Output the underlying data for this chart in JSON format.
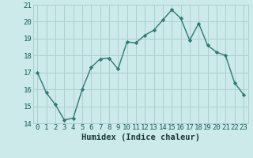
{
  "x": [
    0,
    1,
    2,
    3,
    4,
    5,
    6,
    7,
    8,
    9,
    10,
    11,
    12,
    13,
    14,
    15,
    16,
    17,
    18,
    19,
    20,
    21,
    22,
    23
  ],
  "y": [
    17.0,
    15.8,
    15.1,
    14.2,
    14.3,
    16.0,
    17.3,
    17.8,
    17.85,
    17.2,
    18.8,
    18.75,
    19.2,
    19.5,
    20.1,
    20.7,
    20.2,
    18.9,
    19.9,
    18.6,
    18.2,
    18.0,
    16.4,
    15.7
  ],
  "line_color": "#2d7a72",
  "bg_color": "#cceaea",
  "grid_color": "#aad0d0",
  "xlabel": "Humidex (Indice chaleur)",
  "ylim": [
    14,
    21
  ],
  "xlim": [
    -0.5,
    23.5
  ],
  "yticks": [
    14,
    15,
    16,
    17,
    18,
    19,
    20,
    21
  ],
  "xticks": [
    0,
    1,
    2,
    3,
    4,
    5,
    6,
    7,
    8,
    9,
    10,
    11,
    12,
    13,
    14,
    15,
    16,
    17,
    18,
    19,
    20,
    21,
    22,
    23
  ],
  "xlabel_fontsize": 7.5,
  "tick_fontsize": 6.5,
  "marker": "D",
  "marker_size": 2.2,
  "linewidth": 1.0
}
